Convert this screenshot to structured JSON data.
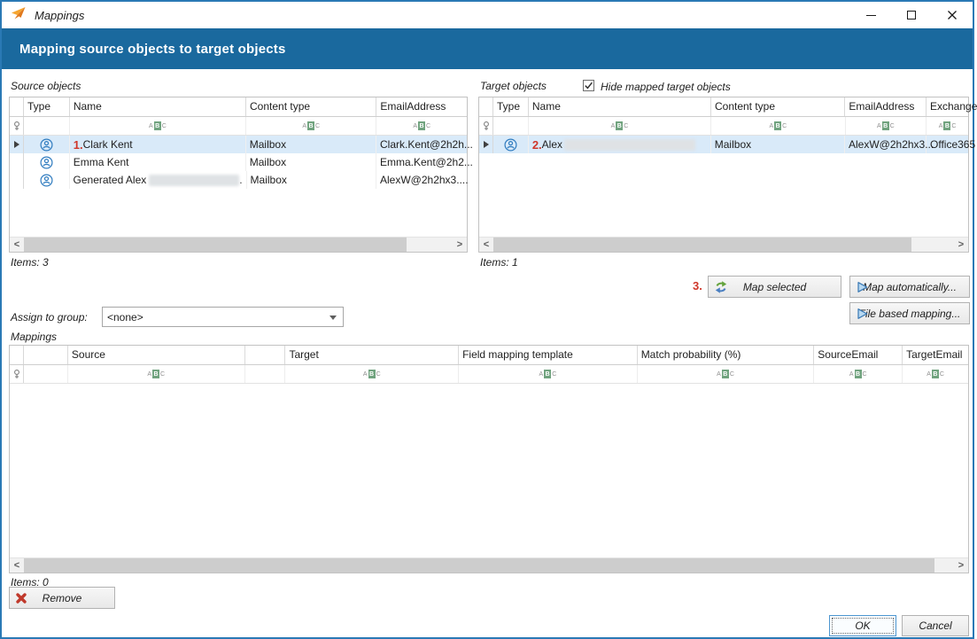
{
  "window": {
    "title": "Mappings"
  },
  "banner": {
    "title": "Mapping source objects to target objects"
  },
  "source": {
    "label": "Source objects",
    "items_label": "Items: 3",
    "columns": {
      "type": "Type",
      "name": "Name",
      "content_type": "Content type",
      "email": "EmailAddress"
    },
    "rows": [
      {
        "annotation": "1.",
        "name": "Clark Kent",
        "content_type": "Mailbox",
        "email": "Clark.Kent@2h2h..."
      },
      {
        "annotation": "",
        "name": "Emma Kent",
        "content_type": "Mailbox",
        "email": "Emma.Kent@2h2..."
      },
      {
        "annotation": "",
        "name": "Generated Alex",
        "name_suffix": ".",
        "content_type": "Mailbox",
        "email": "AlexW@2h2hx3...."
      }
    ]
  },
  "target": {
    "label": "Target objects",
    "checkbox_label": "Hide mapped target objects",
    "checkbox_checked": true,
    "items_label": "Items: 1",
    "columns": {
      "type": "Type",
      "name": "Name",
      "content_type": "Content type",
      "email": "EmailAddress",
      "exchange": "Exchange"
    },
    "rows": [
      {
        "annotation": "2.",
        "name": "Alex",
        "content_type": "Mailbox",
        "email": "AlexW@2h2hx3...",
        "exchange": "Office365"
      }
    ]
  },
  "actions": {
    "annotation": "3.",
    "map_selected": "Map selected",
    "map_automatically": "Map automatically...",
    "file_based_mapping": "File based mapping..."
  },
  "assign": {
    "label": "Assign to group:",
    "value": "<none>"
  },
  "mappings": {
    "label": "Mappings",
    "items_label": "Items: 0",
    "remove": "Remove",
    "columns": {
      "source": "Source",
      "target": "Target",
      "field_template": "Field mapping template",
      "match_prob": "Match probability (%)",
      "source_email": "SourceEmail",
      "target_email": "TargetEmail"
    }
  },
  "footer": {
    "ok": "OK",
    "cancel": "Cancel"
  },
  "icons": {
    "abc": [
      "A",
      "B",
      "C"
    ],
    "scroll_left": "<",
    "scroll_right": ">"
  },
  "colors": {
    "banner": "#1A699E",
    "selection": "#D9EAF9",
    "annotation": "#CF362A",
    "filter_green": "#71A37F"
  }
}
